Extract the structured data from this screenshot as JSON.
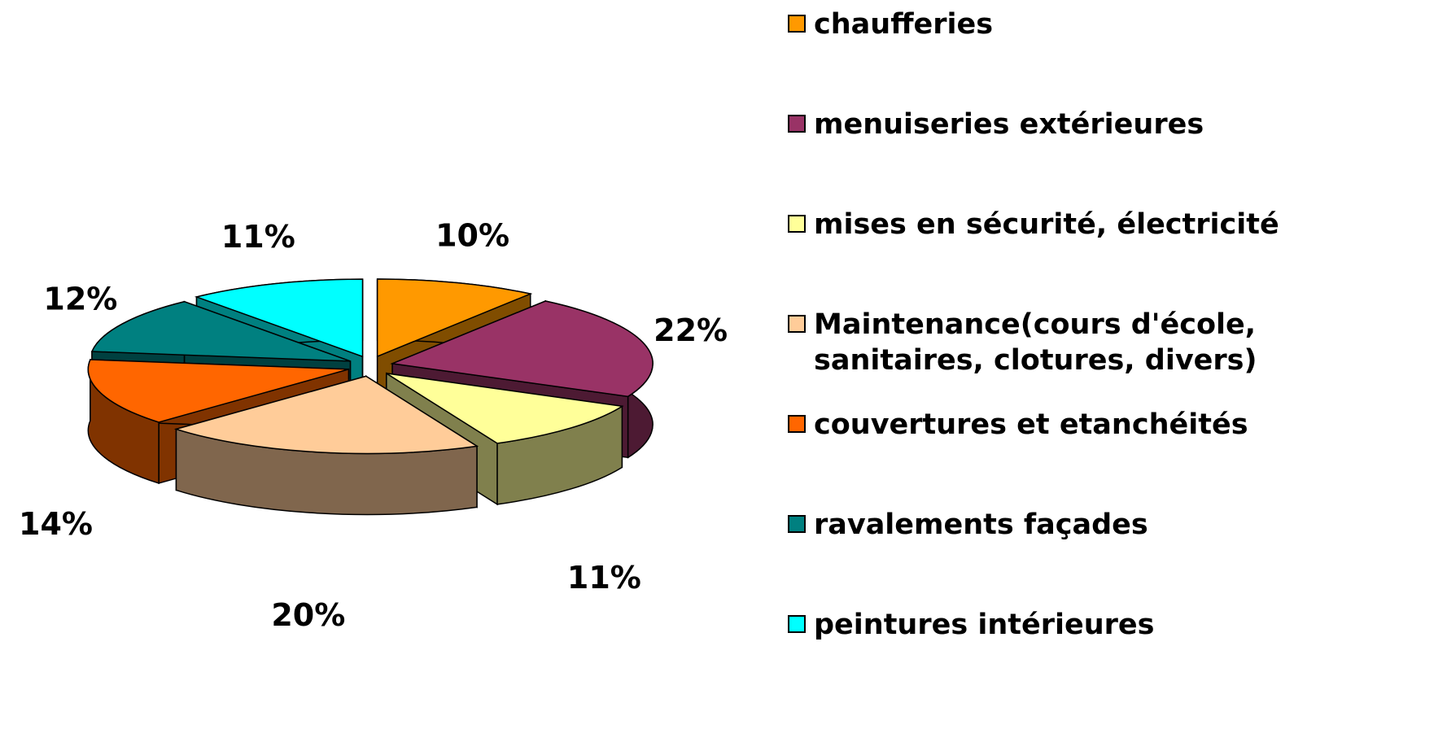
{
  "chart_data": {
    "type": "pie3d",
    "categories": [
      "chaufferies",
      "menuiseries extérieures",
      "mises en sécurité, électricité",
      "Maintenance(cours d'école, sanitaires, clotures, divers)",
      "couvertures et etanchéités",
      "ravalements façades",
      "peintures intérieures"
    ],
    "values": [
      10,
      22,
      11,
      20,
      14,
      12,
      11
    ],
    "value_labels": [
      "10%",
      "22%",
      "11%",
      "20%",
      "14%",
      "12%",
      "11%"
    ],
    "colors": [
      "#ff9900",
      "#993366",
      "#ffff99",
      "#ffcc99",
      "#ff6600",
      "#008080",
      "#00ffff"
    ],
    "legend": "right"
  }
}
